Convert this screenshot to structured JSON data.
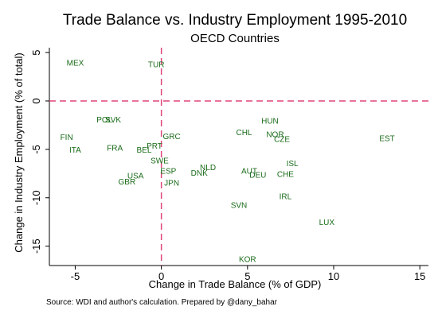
{
  "chart_data": {
    "type": "scatter",
    "title": "Trade Balance vs. Industry Employment 1995-2010",
    "subtitle": "OECD Countries",
    "xlabel": "Change in Trade Balance (% of GDP)",
    "ylabel": "Change in Industry Employment (% of total)",
    "xlim": [
      -6.5,
      15.5
    ],
    "ylim": [
      -17,
      5.5
    ],
    "xticks": [
      -5,
      0,
      5,
      10,
      15
    ],
    "yticks": [
      5,
      0,
      -5,
      -10,
      -15
    ],
    "reference_lines": {
      "x": 0,
      "y": 0
    },
    "grid": false,
    "points": [
      {
        "label": "MEX",
        "x": -5.0,
        "y": 4.0
      },
      {
        "label": "TUR",
        "x": -0.3,
        "y": 3.8
      },
      {
        "label": "POL",
        "x": -3.3,
        "y": -1.9
      },
      {
        "label": "SVK",
        "x": -2.8,
        "y": -1.9
      },
      {
        "label": "FIN",
        "x": -5.5,
        "y": -3.7
      },
      {
        "label": "ITA",
        "x": -5.0,
        "y": -5.0
      },
      {
        "label": "FRA",
        "x": -2.7,
        "y": -4.8
      },
      {
        "label": "PRT",
        "x": -0.4,
        "y": -4.6
      },
      {
        "label": "BEL",
        "x": -1.0,
        "y": -5.0
      },
      {
        "label": "GRC",
        "x": 0.6,
        "y": -3.6
      },
      {
        "label": "SWE",
        "x": -0.1,
        "y": -6.1
      },
      {
        "label": "ESP",
        "x": 0.4,
        "y": -7.2
      },
      {
        "label": "USA",
        "x": -1.5,
        "y": -7.7
      },
      {
        "label": "GBR",
        "x": -2.0,
        "y": -8.3
      },
      {
        "label": "JPN",
        "x": 0.6,
        "y": -8.4
      },
      {
        "label": "NLD",
        "x": 2.7,
        "y": -6.8
      },
      {
        "label": "DNK",
        "x": 2.2,
        "y": -7.4
      },
      {
        "label": "AUT",
        "x": 5.1,
        "y": -7.2
      },
      {
        "label": "DEU",
        "x": 5.6,
        "y": -7.6
      },
      {
        "label": "CHL",
        "x": 4.8,
        "y": -3.2
      },
      {
        "label": "HUN",
        "x": 6.3,
        "y": -2.0
      },
      {
        "label": "NOR",
        "x": 6.6,
        "y": -3.4
      },
      {
        "label": "CZE",
        "x": 7.0,
        "y": -3.9
      },
      {
        "label": "ISL",
        "x": 7.6,
        "y": -6.4
      },
      {
        "label": "CHE",
        "x": 7.2,
        "y": -7.5
      },
      {
        "label": "IRL",
        "x": 7.2,
        "y": -9.8
      },
      {
        "label": "SVN",
        "x": 4.5,
        "y": -10.7
      },
      {
        "label": "LUX",
        "x": 9.6,
        "y": -12.5
      },
      {
        "label": "EST",
        "x": 13.1,
        "y": -3.8
      },
      {
        "label": "KOR",
        "x": 5.0,
        "y": -16.3
      }
    ]
  },
  "colors": {
    "points": "#1a6b1a",
    "reference_lines": "#e0457b",
    "axis": "#000000"
  },
  "source_note": "Source: WDI and author's calculation. Prepared by @dany_bahar"
}
